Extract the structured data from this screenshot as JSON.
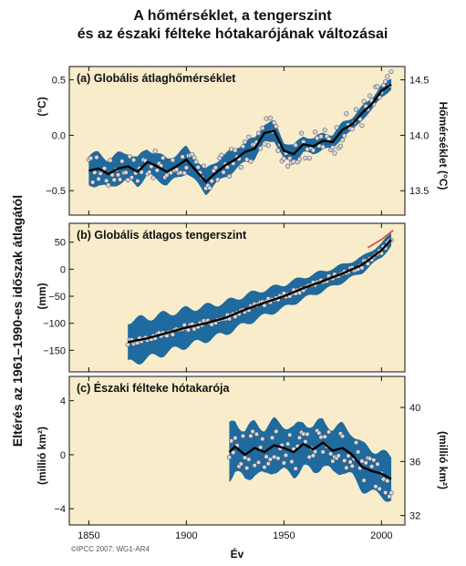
{
  "figure": {
    "title_line1": "A hőmérséklet, a tengerszint",
    "title_line2": "és az északi félteke hótakarójának változásai",
    "left_axis_label": "Eltérés az 1961–1990-es időszak átlagától",
    "x_axis_label": "Év",
    "credit": "©IPCC  2007: WG1-AR4"
  },
  "colors": {
    "panel_bg": "#f8eccb",
    "band": "#1f6a9e",
    "smooth_line": "#000000",
    "points_fill": "#d6d6e2",
    "points_stroke": "#555555",
    "satellite_line": "#d9533a"
  },
  "chart_data": [
    {
      "type": "line",
      "panel_title": "(a) Globális átlaghőmérséklet",
      "ylabel_left": "(°C)",
      "ylabel_right": "Hőmérséklet (°C)",
      "xlim": [
        1840,
        2012
      ],
      "ylim": [
        -0.72,
        0.62
      ],
      "yticks_left": [
        -0.5,
        0.0,
        0.5
      ],
      "yticks_left_labels": [
        "−0.5",
        "0.0",
        "0.5"
      ],
      "right_axis_offset": 14.0,
      "yticks_right": [
        13.5,
        14.0,
        14.5
      ],
      "yticks_right_labels": [
        "13.5",
        "14.0",
        "14.5"
      ],
      "x_start": 1850,
      "x_end": 2005,
      "smooth": [
        [
          1850,
          -0.32
        ],
        [
          1855,
          -0.3
        ],
        [
          1860,
          -0.35
        ],
        [
          1865,
          -0.3
        ],
        [
          1870,
          -0.28
        ],
        [
          1875,
          -0.33
        ],
        [
          1880,
          -0.24
        ],
        [
          1885,
          -0.28
        ],
        [
          1890,
          -0.33
        ],
        [
          1895,
          -0.28
        ],
        [
          1900,
          -0.22
        ],
        [
          1905,
          -0.32
        ],
        [
          1910,
          -0.42
        ],
        [
          1915,
          -0.34
        ],
        [
          1920,
          -0.27
        ],
        [
          1925,
          -0.22
        ],
        [
          1930,
          -0.15
        ],
        [
          1935,
          -0.12
        ],
        [
          1940,
          0.02
        ],
        [
          1945,
          0.04
        ],
        [
          1950,
          -0.14
        ],
        [
          1955,
          -0.17
        ],
        [
          1960,
          -0.08
        ],
        [
          1965,
          -0.1
        ],
        [
          1970,
          -0.05
        ],
        [
          1975,
          -0.06
        ],
        [
          1980,
          0.05
        ],
        [
          1985,
          0.1
        ],
        [
          1990,
          0.2
        ],
        [
          1995,
          0.28
        ],
        [
          2000,
          0.4
        ],
        [
          2005,
          0.46
        ]
      ],
      "band_halfwidth": [
        [
          1850,
          0.14
        ],
        [
          1880,
          0.12
        ],
        [
          1920,
          0.1
        ],
        [
          1950,
          0.08
        ],
        [
          2005,
          0.05
        ]
      ],
      "points_spread": 0.13,
      "series": []
    },
    {
      "type": "line",
      "panel_title": "(b) Globális átlagos tengerszint",
      "ylabel_left": "(mm)",
      "xlim": [
        1840,
        2012
      ],
      "ylim": [
        -190,
        85
      ],
      "yticks_left": [
        -150,
        -100,
        -50,
        0,
        50
      ],
      "yticks_left_labels": [
        "−150",
        "−100",
        "−50",
        "0",
        "50"
      ],
      "x_start": 1870,
      "x_end": 2005,
      "smooth": [
        [
          1870,
          -135
        ],
        [
          1880,
          -128
        ],
        [
          1890,
          -118
        ],
        [
          1900,
          -108
        ],
        [
          1910,
          -100
        ],
        [
          1920,
          -90
        ],
        [
          1930,
          -75
        ],
        [
          1940,
          -62
        ],
        [
          1950,
          -50
        ],
        [
          1960,
          -35
        ],
        [
          1970,
          -22
        ],
        [
          1980,
          -8
        ],
        [
          1990,
          8
        ],
        [
          2000,
          35
        ],
        [
          2005,
          55
        ]
      ],
      "band_halfwidth": [
        [
          1870,
          40
        ],
        [
          1900,
          34
        ],
        [
          1950,
          22
        ],
        [
          1980,
          16
        ],
        [
          2005,
          12
        ]
      ],
      "points_spread": 6,
      "satellite_line": [
        [
          1993,
          40
        ],
        [
          2000,
          55
        ],
        [
          2006,
          72
        ]
      ],
      "series": []
    },
    {
      "type": "line",
      "panel_title": "(c) Északi félteke hótakarója",
      "ylabel_left": "(millió km²)",
      "ylabel_right": "(millió km²)",
      "xlim": [
        1840,
        2012
      ],
      "ylim": [
        -5.2,
        5.8
      ],
      "yticks_left": [
        -4,
        0,
        4
      ],
      "yticks_left_labels": [
        "−4",
        "0",
        "4"
      ],
      "right_axis_offset": 36.5,
      "yticks_right": [
        32,
        36,
        40
      ],
      "yticks_right_labels": [
        "32",
        "36",
        "40"
      ],
      "x_start": 1922,
      "x_end": 2005,
      "smooth": [
        [
          1922,
          0.2
        ],
        [
          1925,
          0.6
        ],
        [
          1930,
          0.0
        ],
        [
          1935,
          0.5
        ],
        [
          1940,
          0.2
        ],
        [
          1945,
          0.7
        ],
        [
          1950,
          0.5
        ],
        [
          1955,
          0.2
        ],
        [
          1960,
          0.8
        ],
        [
          1965,
          0.4
        ],
        [
          1970,
          0.9
        ],
        [
          1975,
          0.3
        ],
        [
          1980,
          0.5
        ],
        [
          1985,
          0.0
        ],
        [
          1990,
          -0.9
        ],
        [
          1995,
          -1.2
        ],
        [
          2000,
          -1.4
        ],
        [
          2005,
          -1.8
        ]
      ],
      "band_halfwidth": [
        [
          1922,
          1.9
        ],
        [
          1960,
          1.7
        ],
        [
          2005,
          1.6
        ]
      ],
      "points_spread": 1.4,
      "series": []
    }
  ],
  "x_axis": {
    "xticks": [
      1850,
      1900,
      1950,
      2000
    ],
    "xtick_labels": [
      "1850",
      "1900",
      "1950",
      "2000"
    ]
  }
}
